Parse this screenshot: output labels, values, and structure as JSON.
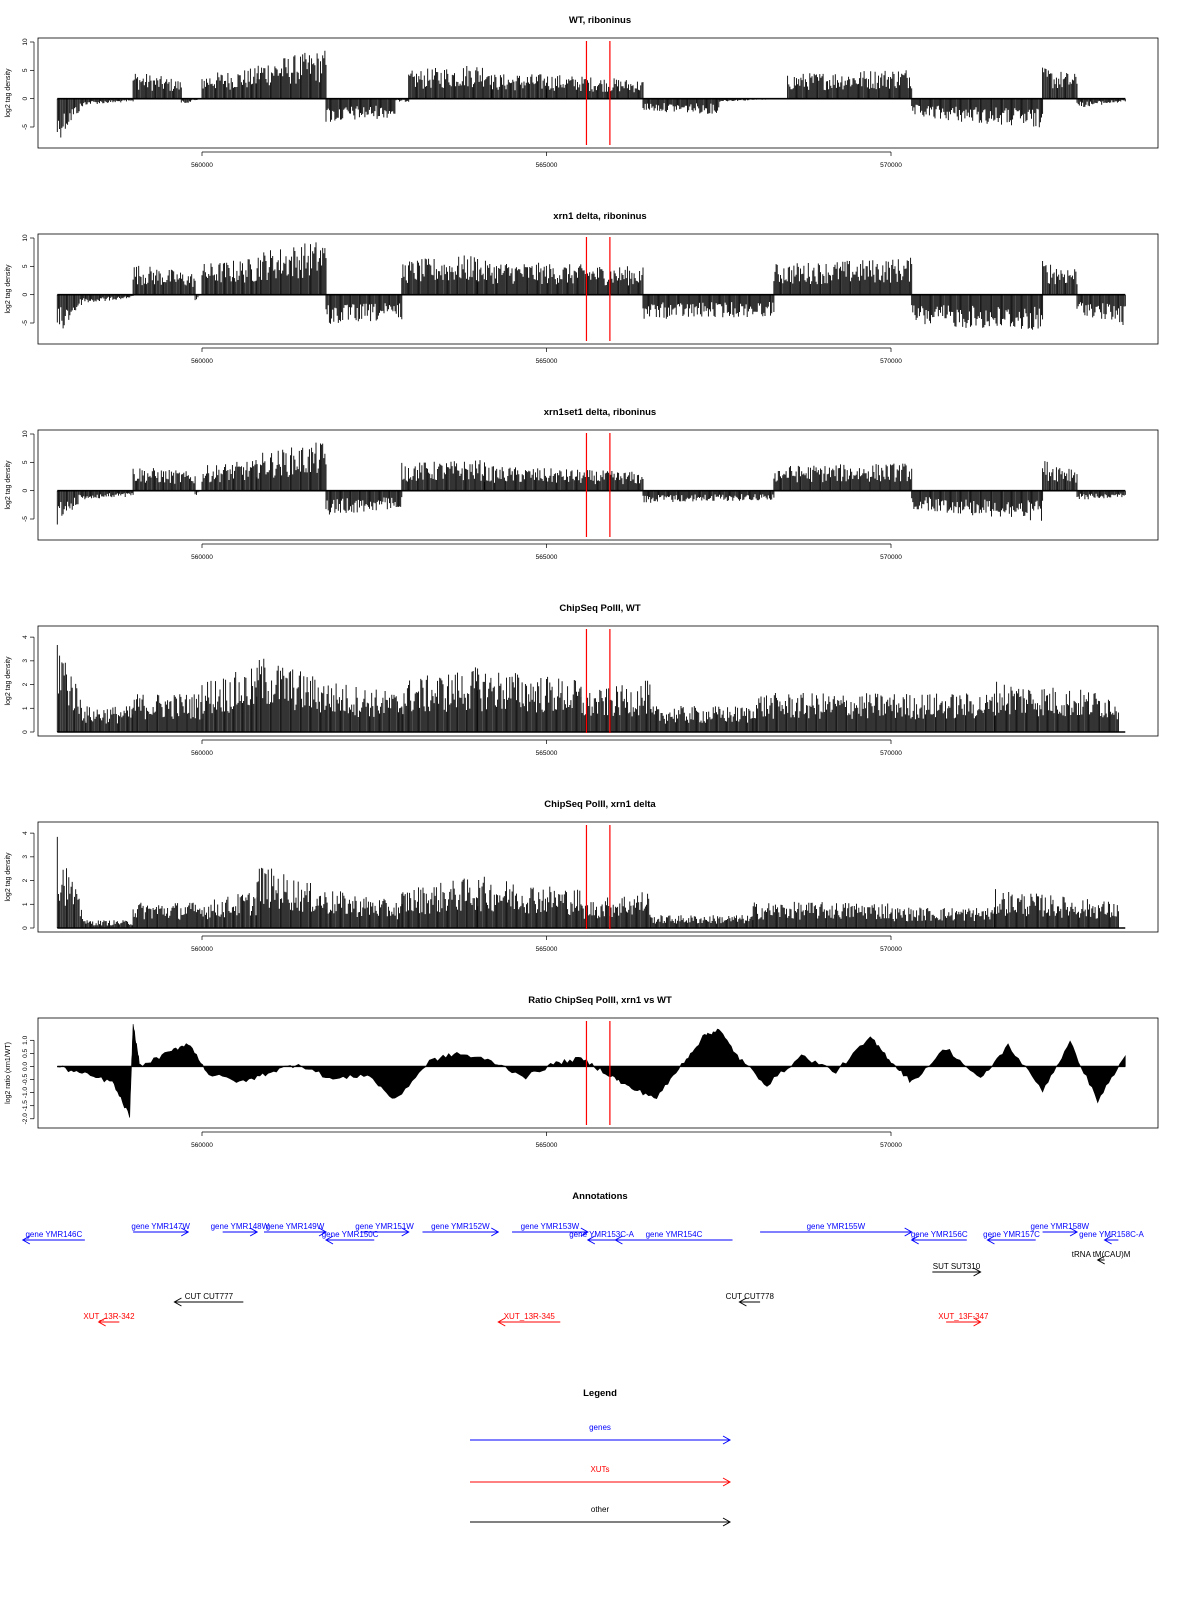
{
  "x_axis": {
    "ticks": [
      560000,
      565000,
      570000
    ],
    "tick_labels": [
      "560000",
      "565000",
      "570000"
    ],
    "range": [
      557400,
      573600
    ]
  },
  "marker_lines": {
    "positions": [
      565580,
      565920
    ],
    "color": "#ff0000"
  },
  "chart_data": [
    {
      "type": "bar",
      "title": "WT, riboninus",
      "ylabel": "log2 tag density",
      "ylim": [
        -8,
        10
      ],
      "yticks": [
        -5,
        0,
        5,
        10
      ],
      "yticklabels": [
        "-5",
        "0",
        "5",
        "10"
      ],
      "baseline": 0,
      "segments": [
        {
          "x": [
            557900,
            558300
          ],
          "values": [
            -7,
            -1
          ]
        },
        {
          "x": [
            558300,
            559000
          ],
          "values": [
            -1,
            -0.5
          ]
        },
        {
          "x": [
            559000,
            559700
          ],
          "values": [
            4.5,
            3
          ]
        },
        {
          "x": [
            559700,
            560000
          ],
          "values": [
            -1,
            0
          ]
        },
        {
          "x": [
            560000,
            560800
          ],
          "values": [
            4,
            5
          ]
        },
        {
          "x": [
            560800,
            561800
          ],
          "values": [
            6,
            8
          ]
        },
        {
          "x": [
            561800,
            562800
          ],
          "values": [
            -4,
            -3
          ]
        },
        {
          "x": [
            562800,
            563000
          ],
          "values": [
            -0.5,
            -0.5
          ]
        },
        {
          "x": [
            563000,
            564200
          ],
          "values": [
            4.5,
            6
          ]
        },
        {
          "x": [
            564200,
            565000
          ],
          "values": [
            4,
            4
          ]
        },
        {
          "x": [
            565000,
            566400
          ],
          "values": [
            4,
            3
          ]
        },
        {
          "x": [
            566400,
            567500
          ],
          "values": [
            -2,
            -2.5
          ]
        },
        {
          "x": [
            567500,
            568500
          ],
          "values": [
            -0.5,
            0
          ]
        },
        {
          "x": [
            568500,
            570300
          ],
          "values": [
            4,
            5
          ]
        },
        {
          "x": [
            570300,
            572200
          ],
          "values": [
            -3,
            -5
          ]
        },
        {
          "x": [
            572200,
            572700
          ],
          "values": [
            5,
            4
          ]
        },
        {
          "x": [
            572700,
            573400
          ],
          "values": [
            -1.5,
            -0.5
          ]
        }
      ]
    },
    {
      "type": "bar",
      "title": "xrn1 delta, riboninus",
      "ylabel": "log2 tag density",
      "ylim": [
        -8,
        10
      ],
      "yticks": [
        -5,
        0,
        5,
        10
      ],
      "yticklabels": [
        "-5",
        "0",
        "5",
        "10"
      ],
      "baseline": 0,
      "segments": [
        {
          "x": [
            557900,
            558300
          ],
          "values": [
            -7,
            -1
          ]
        },
        {
          "x": [
            558300,
            559000
          ],
          "values": [
            -1.5,
            -0.5
          ]
        },
        {
          "x": [
            559000,
            559900
          ],
          "values": [
            5,
            3.5
          ]
        },
        {
          "x": [
            559900,
            560000
          ],
          "values": [
            -1,
            0
          ]
        },
        {
          "x": [
            560000,
            560800
          ],
          "values": [
            5,
            6
          ]
        },
        {
          "x": [
            560800,
            561800
          ],
          "values": [
            7,
            9
          ]
        },
        {
          "x": [
            561800,
            562900
          ],
          "values": [
            -5,
            -4
          ]
        },
        {
          "x": [
            562900,
            564000
          ],
          "values": [
            5.5,
            6.5
          ]
        },
        {
          "x": [
            564000,
            566400
          ],
          "values": [
            5.5,
            4.5
          ]
        },
        {
          "x": [
            566400,
            568300
          ],
          "values": [
            -4,
            -3.5
          ]
        },
        {
          "x": [
            568300,
            570300
          ],
          "values": [
            5,
            6
          ]
        },
        {
          "x": [
            570300,
            572200
          ],
          "values": [
            -5,
            -6
          ]
        },
        {
          "x": [
            572200,
            572700
          ],
          "values": [
            5.5,
            4.5
          ]
        },
        {
          "x": [
            572700,
            573400
          ],
          "values": [
            -3,
            -5
          ]
        }
      ]
    },
    {
      "type": "bar",
      "title": "xrn1set1 delta, riboninus",
      "ylabel": "log2 tag density",
      "ylim": [
        -8,
        10
      ],
      "yticks": [
        -5,
        0,
        5,
        10
      ],
      "yticklabels": [
        "-5",
        "0",
        "5",
        "10"
      ],
      "baseline": 0,
      "segments": [
        {
          "x": [
            557900,
            558300
          ],
          "values": [
            -6,
            -1
          ]
        },
        {
          "x": [
            558300,
            559000
          ],
          "values": [
            -1.5,
            -1
          ]
        },
        {
          "x": [
            559000,
            559900
          ],
          "values": [
            4,
            3
          ]
        },
        {
          "x": [
            559900,
            560000
          ],
          "values": [
            -1,
            0
          ]
        },
        {
          "x": [
            560000,
            560800
          ],
          "values": [
            4,
            5
          ]
        },
        {
          "x": [
            560800,
            561800
          ],
          "values": [
            6,
            8
          ]
        },
        {
          "x": [
            561800,
            562900
          ],
          "values": [
            -4,
            -3
          ]
        },
        {
          "x": [
            562900,
            564100
          ],
          "values": [
            4.5,
            5
          ]
        },
        {
          "x": [
            564100,
            566400
          ],
          "values": [
            4,
            3
          ]
        },
        {
          "x": [
            566400,
            568300
          ],
          "values": [
            -2,
            -1.5
          ]
        },
        {
          "x": [
            568300,
            570300
          ],
          "values": [
            4,
            4.5
          ]
        },
        {
          "x": [
            570300,
            572200
          ],
          "values": [
            -3,
            -5
          ]
        },
        {
          "x": [
            572200,
            572700
          ],
          "values": [
            5,
            4
          ]
        },
        {
          "x": [
            572700,
            573400
          ],
          "values": [
            -1.5,
            -1
          ]
        }
      ]
    },
    {
      "type": "bar",
      "title": "ChipSeq PolII, WT",
      "ylabel": "log2 tag density",
      "ylim": [
        0,
        4.3
      ],
      "yticks": [
        0,
        1,
        2,
        3,
        4
      ],
      "yticklabels": [
        "0",
        "1",
        "2",
        "3",
        "4"
      ],
      "baseline": 0,
      "segments": [
        {
          "x": [
            557900,
            558300
          ],
          "values": [
            4,
            1
          ]
        },
        {
          "x": [
            558300,
            559000
          ],
          "values": [
            1,
            1
          ]
        },
        {
          "x": [
            559000,
            560000
          ],
          "values": [
            1.5,
            1.5
          ]
        },
        {
          "x": [
            560000,
            560800
          ],
          "values": [
            2,
            2.5
          ]
        },
        {
          "x": [
            560800,
            561800
          ],
          "values": [
            3,
            2
          ]
        },
        {
          "x": [
            561800,
            562900
          ],
          "values": [
            2,
            1.5
          ]
        },
        {
          "x": [
            562900,
            564000
          ],
          "values": [
            2,
            2.5
          ]
        },
        {
          "x": [
            564000,
            565500
          ],
          "values": [
            2.5,
            2
          ]
        },
        {
          "x": [
            565500,
            566500
          ],
          "values": [
            1.5,
            2
          ]
        },
        {
          "x": [
            566500,
            568000
          ],
          "values": [
            1,
            1
          ]
        },
        {
          "x": [
            568000,
            570000
          ],
          "values": [
            1.5,
            1.5
          ]
        },
        {
          "x": [
            570000,
            571500
          ],
          "values": [
            1.5,
            1.5
          ]
        },
        {
          "x": [
            571500,
            573300
          ],
          "values": [
            2,
            1.5
          ]
        }
      ]
    },
    {
      "type": "bar",
      "title": "ChipSeq PolII, xrn1 delta",
      "ylabel": "log2 tag density",
      "ylim": [
        0,
        4.3
      ],
      "yticks": [
        0,
        1,
        2,
        3,
        4
      ],
      "yticklabels": [
        "0",
        "1",
        "2",
        "3",
        "4"
      ],
      "baseline": 0,
      "segments": [
        {
          "x": [
            557900,
            558300
          ],
          "values": [
            3.5,
            0.5
          ]
        },
        {
          "x": [
            558300,
            559000
          ],
          "values": [
            0.3,
            0.3
          ]
        },
        {
          "x": [
            559000,
            560000
          ],
          "values": [
            1,
            1
          ]
        },
        {
          "x": [
            560000,
            560800
          ],
          "values": [
            1,
            1.5
          ]
        },
        {
          "x": [
            560800,
            561800
          ],
          "values": [
            2.5,
            1.5
          ]
        },
        {
          "x": [
            561800,
            562900
          ],
          "values": [
            1.5,
            1
          ]
        },
        {
          "x": [
            562900,
            564000
          ],
          "values": [
            1.5,
            2
          ]
        },
        {
          "x": [
            564000,
            565500
          ],
          "values": [
            2,
            1.5
          ]
        },
        {
          "x": [
            565500,
            566500
          ],
          "values": [
            1,
            1.5
          ]
        },
        {
          "x": [
            566500,
            568000
          ],
          "values": [
            0.5,
            0.5
          ]
        },
        {
          "x": [
            568000,
            570000
          ],
          "values": [
            1,
            1
          ]
        },
        {
          "x": [
            570000,
            571500
          ],
          "values": [
            0.8,
            0.8
          ]
        },
        {
          "x": [
            571500,
            573300
          ],
          "values": [
            1.5,
            1
          ]
        }
      ]
    },
    {
      "type": "area",
      "title": "Ratio ChipSeq PolII, xrn1 vs WT",
      "ylabel": "log2 ratio (xrn1/WT)",
      "ylim": [
        -2.2,
        1.7
      ],
      "yticks": [
        -2,
        -1.5,
        -1,
        -0.5,
        0,
        0.5,
        1
      ],
      "yticklabels": [
        "-2.0",
        "-1.5",
        "-1.0",
        "-0.5",
        "0.0",
        "0.5",
        "1.0"
      ],
      "x": [
        557900,
        558300,
        558700,
        558950,
        559000,
        559100,
        559500,
        559800,
        560100,
        560600,
        561000,
        561400,
        561900,
        562400,
        562800,
        563300,
        563700,
        564200,
        564700,
        565100,
        565500,
        565900,
        566200,
        566600,
        567000,
        567300,
        567500,
        567800,
        568200,
        568700,
        569200,
        569700,
        570000,
        570300,
        570800,
        571300,
        571700,
        572200,
        572600,
        573000,
        573400
      ],
      "y": [
        0,
        -0.3,
        -0.6,
        -1.9,
        1.6,
        0,
        0.5,
        0.9,
        -0.3,
        -0.6,
        -0.2,
        0.1,
        -0.5,
        -0.3,
        -1.3,
        0.2,
        0.5,
        0.2,
        -0.4,
        0.1,
        0.3,
        -0.3,
        -0.8,
        -1.2,
        0.2,
        1.2,
        1.4,
        0.3,
        -0.7,
        0.4,
        -0.2,
        1.1,
        0.2,
        -0.6,
        0.7,
        -0.5,
        0.8,
        -0.9,
        0.9,
        -1.3,
        0.4
      ]
    }
  ],
  "annotations": {
    "title": "Annotations",
    "items": [
      {
        "label": "gene YMR146C",
        "start": 557400,
        "end": 558300,
        "strand": "-",
        "color": "#0000ff",
        "row": 1
      },
      {
        "label": "gene YMR147W",
        "start": 559000,
        "end": 559800,
        "strand": "+",
        "color": "#0000ff",
        "row": 0
      },
      {
        "label": "gene YMR148W",
        "start": 560300,
        "end": 560800,
        "strand": "+",
        "color": "#0000ff",
        "row": 0
      },
      {
        "label": "gene YMR149W",
        "start": 560900,
        "end": 561800,
        "strand": "+",
        "color": "#0000ff",
        "row": 0
      },
      {
        "label": "gene YMR150C",
        "start": 561800,
        "end": 562500,
        "strand": "-",
        "color": "#0000ff",
        "row": 1
      },
      {
        "label": "gene YMR151W",
        "start": 562300,
        "end": 563000,
        "strand": "+",
        "color": "#0000ff",
        "row": 0
      },
      {
        "label": "gene YMR152W",
        "start": 563200,
        "end": 564300,
        "strand": "+",
        "color": "#0000ff",
        "row": 0
      },
      {
        "label": "gene YMR153W",
        "start": 564500,
        "end": 565600,
        "strand": "+",
        "color": "#0000ff",
        "row": 0
      },
      {
        "label": "gene YMR153C-A",
        "start": 565600,
        "end": 566000,
        "strand": "-",
        "color": "#0000ff",
        "row": 1
      },
      {
        "label": "gene YMR154C",
        "start": 566000,
        "end": 567700,
        "strand": "-",
        "color": "#0000ff",
        "row": 1
      },
      {
        "label": "gene YMR155W",
        "start": 568100,
        "end": 570300,
        "strand": "+",
        "color": "#0000ff",
        "row": 0
      },
      {
        "label": "gene YMR156C",
        "start": 570300,
        "end": 571100,
        "strand": "-",
        "color": "#0000ff",
        "row": 1
      },
      {
        "label": "gene YMR157C",
        "start": 571400,
        "end": 572100,
        "strand": "-",
        "color": "#0000ff",
        "row": 1
      },
      {
        "label": "gene YMR158W",
        "start": 572200,
        "end": 572700,
        "strand": "+",
        "color": "#0000ff",
        "row": 0
      },
      {
        "label": "gene YMR158C-A",
        "start": 573100,
        "end": 573300,
        "strand": "-",
        "color": "#0000ff",
        "row": 1
      },
      {
        "label": "tRNA tM(CAU)M",
        "start": 573000,
        "end": 573100,
        "strand": "-",
        "color": "#000000",
        "row": 2
      },
      {
        "label": "SUT SUT310",
        "start": 570600,
        "end": 571300,
        "strand": "+",
        "color": "#000000",
        "row": 3
      },
      {
        "label": "CUT CUT777",
        "start": 559600,
        "end": 560600,
        "strand": "-",
        "color": "#000000",
        "row": 4
      },
      {
        "label": "CUT CUT778",
        "start": 567800,
        "end": 568100,
        "strand": "-",
        "color": "#000000",
        "row": 4
      },
      {
        "label": "XUT_13R-342",
        "start": 558500,
        "end": 558800,
        "strand": "-",
        "color": "#ff0000",
        "row": 5
      },
      {
        "label": "XUT_13R-345",
        "start": 564300,
        "end": 565200,
        "strand": "-",
        "color": "#ff0000",
        "row": 5
      },
      {
        "label": "XUT_13F-347",
        "start": 570800,
        "end": 571300,
        "strand": "+",
        "color": "#ff0000",
        "row": 5
      }
    ]
  },
  "legend": {
    "title": "Legend",
    "items": [
      {
        "label": "genes",
        "color": "#0000ff"
      },
      {
        "label": "XUTs",
        "color": "#ff0000"
      },
      {
        "label": "other",
        "color": "#000000"
      }
    ]
  }
}
